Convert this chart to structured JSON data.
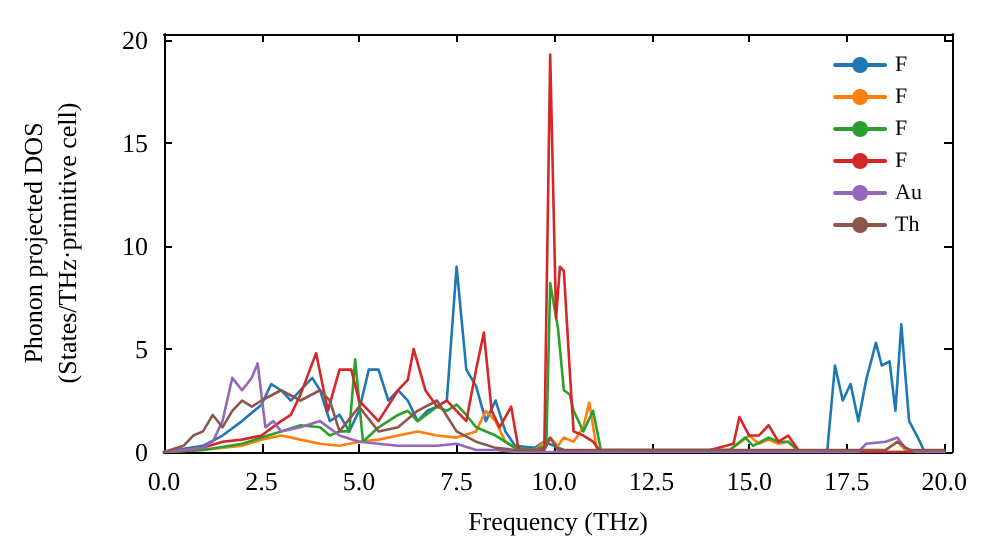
{
  "chart_data": {
    "type": "line",
    "xlabel": "Frequency (THz)",
    "ylabel": "Phonon projected DOS\n(States/THz·primitive cell)",
    "xlim": [
      0,
      20.2
    ],
    "ylim": [
      0,
      20.3
    ],
    "xticks": [
      {
        "value": 0,
        "label": "0.0"
      },
      {
        "value": 2.5,
        "label": "2.5"
      },
      {
        "value": 5,
        "label": "5.0"
      },
      {
        "value": 7.5,
        "label": "7.5"
      },
      {
        "value": 10,
        "label": "10.0"
      },
      {
        "value": 12.5,
        "label": "12.5"
      },
      {
        "value": 15,
        "label": "15.0"
      },
      {
        "value": 17.5,
        "label": "17.5"
      },
      {
        "value": 20,
        "label": "20.0"
      }
    ],
    "yticks": [
      0,
      5,
      10,
      15,
      20
    ],
    "grid": false,
    "legend": "top right",
    "marker": "none",
    "line_style": "solid",
    "series": [
      {
        "name": "F",
        "color": "#1f77b4",
        "x": [
          0,
          1,
          1.5,
          2,
          2.5,
          2.75,
          3,
          3.25,
          3.5,
          3.8,
          4,
          4.25,
          4.5,
          4.75,
          5,
          5.25,
          5.5,
          5.75,
          6,
          6.25,
          6.5,
          6.75,
          7,
          7.25,
          7.5,
          7.75,
          8,
          8.25,
          8.5,
          8.75,
          9,
          9.5,
          9.75,
          10,
          10.25,
          11,
          17,
          17.2,
          17.4,
          17.6,
          17.8,
          18,
          18.25,
          18.4,
          18.6,
          18.75,
          18.9,
          19.1,
          19.3,
          19.5,
          20
        ],
        "values": [
          0,
          0.3,
          0.8,
          1.5,
          2.3,
          3.3,
          3,
          2.5,
          3,
          3.6,
          3,
          1.5,
          1.8,
          1,
          2,
          4,
          4,
          2.5,
          3,
          2.5,
          1.5,
          2,
          2.2,
          2.5,
          9,
          4,
          3.2,
          1.5,
          2.5,
          1,
          0.3,
          0.2,
          0.5,
          0.3,
          0.1,
          0,
          0,
          4.2,
          2.5,
          3.3,
          1.5,
          3.5,
          5.3,
          4.2,
          4.4,
          2,
          6.2,
          1.5,
          0.8,
          0,
          0
        ]
      },
      {
        "name": "F",
        "color": "#ff7f0e",
        "x": [
          0,
          1,
          2,
          2.5,
          3,
          3.5,
          4,
          4.5,
          5,
          5.5,
          6,
          6.5,
          7,
          7.5,
          8,
          8.25,
          8.5,
          8.75,
          9,
          9.5,
          9.9,
          10.1,
          10.25,
          10.5,
          10.75,
          10.9,
          11.1,
          12,
          14.5,
          14.8,
          15,
          15.25,
          15.5,
          15.75,
          16,
          16.3,
          18,
          18.5,
          18.8,
          19,
          19.3,
          20
        ],
        "values": [
          0,
          0.1,
          0.3,
          0.6,
          0.8,
          0.6,
          0.4,
          0.3,
          0.5,
          0.6,
          0.8,
          1,
          0.8,
          0.7,
          1,
          2,
          1.5,
          0.5,
          0.2,
          0.1,
          0.7,
          0.3,
          0.7,
          0.5,
          1.2,
          2.4,
          0.1,
          0.1,
          0.1,
          0.5,
          0.8,
          0.4,
          0.6,
          0.4,
          0.5,
          0,
          0,
          0.1,
          0.5,
          0.1,
          0,
          0
        ]
      },
      {
        "name": "F",
        "color": "#2ca02c",
        "x": [
          0,
          1,
          2,
          2.5,
          3,
          3.5,
          4,
          4.25,
          4.5,
          4.75,
          4.9,
          5.1,
          5.5,
          6,
          6.25,
          6.5,
          7,
          7.25,
          7.5,
          7.75,
          8,
          8.5,
          9,
          9.5,
          9.8,
          9.9,
          10.1,
          10.25,
          10.4,
          10.5,
          10.75,
          11,
          11.2,
          12,
          14.5,
          14.9,
          15.1,
          15.5,
          15.75,
          16,
          16.3,
          20
        ],
        "values": [
          0,
          0.1,
          0.4,
          0.7,
          1,
          1.3,
          1.2,
          0.8,
          1,
          1,
          4.5,
          0.5,
          1.2,
          1.8,
          2,
          1.5,
          2.2,
          2,
          2.3,
          1.8,
          1.2,
          0.8,
          0.2,
          0.1,
          0.3,
          8.2,
          6,
          3,
          2.8,
          2,
          1,
          2,
          0.1,
          0.1,
          0.1,
          0.7,
          0.3,
          0.7,
          0.5,
          0.5,
          0,
          0
        ]
      },
      {
        "name": "F",
        "color": "#d62728",
        "x": [
          0,
          1,
          1.5,
          2,
          2.5,
          3,
          3.25,
          3.5,
          3.9,
          4.2,
          4.5,
          4.8,
          5,
          5.25,
          5.5,
          6,
          6.25,
          6.4,
          6.7,
          7,
          7.25,
          7.5,
          7.75,
          8,
          8.2,
          8.4,
          8.6,
          8.9,
          9.1,
          9.5,
          9.75,
          9.9,
          10.05,
          10.15,
          10.25,
          10.4,
          10.5,
          10.75,
          11,
          11.2,
          14,
          14.6,
          14.75,
          15,
          15.25,
          15.5,
          15.75,
          16,
          16.3,
          20
        ],
        "values": [
          0,
          0.2,
          0.5,
          0.6,
          0.8,
          1.5,
          1.8,
          2.8,
          4.8,
          2,
          4,
          4,
          2.5,
          2,
          1.5,
          3,
          3.5,
          5,
          3,
          2.2,
          2.5,
          2,
          1.5,
          4,
          5.8,
          2,
          1.2,
          2.2,
          0,
          0,
          0.2,
          19.3,
          6.5,
          9,
          8.8,
          4,
          1,
          0.8,
          0.5,
          0,
          0.1,
          0.4,
          1.7,
          0.8,
          0.8,
          1.3,
          0.5,
          0.8,
          0,
          0
        ]
      },
      {
        "name": "Au",
        "color": "#9467bd",
        "x": [
          0,
          1,
          1.25,
          1.5,
          1.75,
          2,
          2.25,
          2.4,
          2.6,
          2.8,
          3,
          3.5,
          4,
          4.5,
          5,
          5.5,
          6,
          7,
          7.5,
          8,
          8.5,
          9,
          12,
          17.8,
          18,
          18.5,
          18.8,
          19,
          19.3,
          20
        ],
        "values": [
          0,
          0.2,
          0.5,
          1.5,
          3.6,
          3,
          3.6,
          4.3,
          1.2,
          1.5,
          1,
          1.2,
          1.5,
          0.8,
          0.5,
          0.4,
          0.3,
          0.3,
          0.4,
          0.1,
          0.1,
          0,
          0,
          0,
          0.4,
          0.5,
          0.7,
          0.2,
          0,
          0
        ]
      },
      {
        "name": "Th",
        "color": "#8c564b",
        "x": [
          0,
          0.5,
          0.75,
          1,
          1.25,
          1.5,
          1.75,
          2,
          2.25,
          2.5,
          3,
          3.5,
          4,
          4.25,
          4.5,
          5,
          5.5,
          6,
          6.5,
          7,
          7.5,
          8,
          8.5,
          9,
          9.75,
          9.9,
          10.1,
          10.5,
          18.5,
          18.8,
          19.1,
          20
        ],
        "values": [
          0,
          0.3,
          0.8,
          1,
          1.8,
          1.2,
          2,
          2.5,
          2.2,
          2.5,
          3,
          2.5,
          3,
          2.5,
          1,
          2.2,
          1,
          1.2,
          2,
          2.5,
          1,
          0.5,
          0.2,
          0.1,
          0.1,
          0.7,
          0.1,
          0.1,
          0.1,
          0.5,
          0.1,
          0.1
        ]
      }
    ]
  }
}
